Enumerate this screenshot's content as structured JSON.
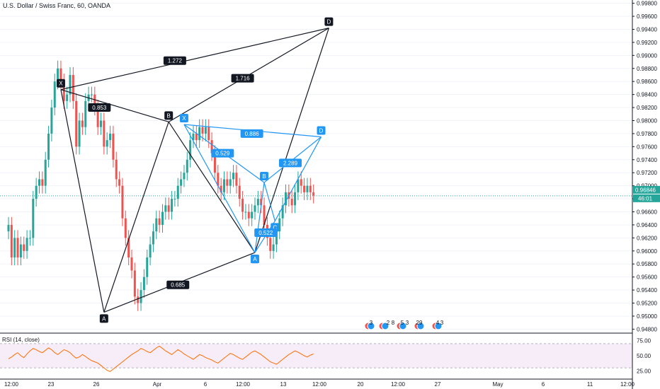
{
  "chart_data": {
    "type": "line",
    "title": "U.S. Dollar / Swiss Franc, 60, OANDA",
    "price": {
      "ylim": [
        0.9475,
        0.9985
      ],
      "yticks": [
        0.998,
        0.996,
        0.994,
        0.992,
        0.99,
        0.988,
        0.986,
        0.984,
        0.982,
        0.98,
        0.978,
        0.976,
        0.974,
        0.972,
        0.97,
        0.968,
        0.966,
        0.964,
        0.962,
        0.96,
        0.958,
        0.956,
        0.954,
        0.952,
        0.95,
        0.948
      ],
      "current_price": "0.96846",
      "countdown": "46:01",
      "series": [
        {
          "x": 0,
          "close": 0.964
        },
        {
          "x": 1,
          "close": 0.959
        },
        {
          "x": 2,
          "close": 0.962
        },
        {
          "x": 3,
          "close": 0.959
        },
        {
          "x": 4,
          "close": 0.961
        },
        {
          "x": 5,
          "close": 0.96
        },
        {
          "x": 6,
          "close": 0.962
        },
        {
          "x": 7,
          "close": 0.962
        },
        {
          "x": 8,
          "close": 0.968
        },
        {
          "x": 9,
          "close": 0.97
        },
        {
          "x": 10,
          "close": 0.971
        },
        {
          "x": 11,
          "close": 0.97
        },
        {
          "x": 12,
          "close": 0.974
        },
        {
          "x": 13,
          "close": 0.978
        },
        {
          "x": 14,
          "close": 0.982
        },
        {
          "x": 15,
          "close": 0.986
        },
        {
          "x": 16,
          "close": 0.988
        },
        {
          "x": 17,
          "close": 0.986
        },
        {
          "x": 18,
          "close": 0.983
        },
        {
          "x": 19,
          "close": 0.984
        },
        {
          "x": 20,
          "close": 0.987
        },
        {
          "x": 21,
          "close": 0.983
        },
        {
          "x": 22,
          "close": 0.976
        },
        {
          "x": 23,
          "close": 0.98
        },
        {
          "x": 24,
          "close": 0.979
        },
        {
          "x": 25,
          "close": 0.983
        },
        {
          "x": 26,
          "close": 0.984
        },
        {
          "x": 27,
          "close": 0.984
        },
        {
          "x": 28,
          "close": 0.982
        },
        {
          "x": 29,
          "close": 0.979
        },
        {
          "x": 30,
          "close": 0.98
        },
        {
          "x": 31,
          "close": 0.976
        },
        {
          "x": 32,
          "close": 0.977
        },
        {
          "x": 33,
          "close": 0.978
        },
        {
          "x": 34,
          "close": 0.974
        },
        {
          "x": 35,
          "close": 0.971
        },
        {
          "x": 36,
          "close": 0.97
        },
        {
          "x": 37,
          "close": 0.965
        },
        {
          "x": 38,
          "close": 0.962
        },
        {
          "x": 39,
          "close": 0.959
        },
        {
          "x": 40,
          "close": 0.957
        },
        {
          "x": 41,
          "close": 0.953
        },
        {
          "x": 42,
          "close": 0.952
        },
        {
          "x": 43,
          "close": 0.954
        },
        {
          "x": 44,
          "close": 0.956
        },
        {
          "x": 45,
          "close": 0.959
        },
        {
          "x": 46,
          "close": 0.961
        },
        {
          "x": 47,
          "close": 0.963
        },
        {
          "x": 48,
          "close": 0.965
        },
        {
          "x": 49,
          "close": 0.964
        },
        {
          "x": 50,
          "close": 0.966
        },
        {
          "x": 51,
          "close": 0.967
        },
        {
          "x": 52,
          "close": 0.966
        },
        {
          "x": 53,
          "close": 0.968
        },
        {
          "x": 54,
          "close": 0.968
        },
        {
          "x": 55,
          "close": 0.97
        },
        {
          "x": 56,
          "close": 0.971
        },
        {
          "x": 57,
          "close": 0.972
        },
        {
          "x": 58,
          "close": 0.974
        },
        {
          "x": 59,
          "close": 0.977
        },
        {
          "x": 60,
          "close": 0.978
        },
        {
          "x": 61,
          "close": 0.977
        },
        {
          "x": 62,
          "close": 0.979
        },
        {
          "x": 63,
          "close": 0.978
        },
        {
          "x": 64,
          "close": 0.979
        },
        {
          "x": 65,
          "close": 0.977
        },
        {
          "x": 66,
          "close": 0.975
        },
        {
          "x": 67,
          "close": 0.972
        },
        {
          "x": 68,
          "close": 0.97
        },
        {
          "x": 69,
          "close": 0.969
        },
        {
          "x": 70,
          "close": 0.971
        },
        {
          "x": 71,
          "close": 0.97
        },
        {
          "x": 72,
          "close": 0.971
        },
        {
          "x": 73,
          "close": 0.972
        },
        {
          "x": 74,
          "close": 0.97
        },
        {
          "x": 75,
          "close": 0.968
        },
        {
          "x": 76,
          "close": 0.966
        },
        {
          "x": 77,
          "close": 0.966
        },
        {
          "x": 78,
          "close": 0.965
        },
        {
          "x": 79,
          "close": 0.966
        },
        {
          "x": 80,
          "close": 0.967
        },
        {
          "x": 81,
          "close": 0.968
        },
        {
          "x": 82,
          "close": 0.967
        },
        {
          "x": 83,
          "close": 0.964
        },
        {
          "x": 84,
          "close": 0.962
        },
        {
          "x": 85,
          "close": 0.96
        },
        {
          "x": 86,
          "close": 0.961
        },
        {
          "x": 87,
          "close": 0.963
        },
        {
          "x": 88,
          "close": 0.965
        },
        {
          "x": 89,
          "close": 0.967
        },
        {
          "x": 90,
          "close": 0.969
        },
        {
          "x": 91,
          "close": 0.968
        },
        {
          "x": 92,
          "close": 0.967
        },
        {
          "x": 93,
          "close": 0.969
        },
        {
          "x": 94,
          "close": 0.971
        },
        {
          "x": 95,
          "close": 0.97
        },
        {
          "x": 96,
          "close": 0.969
        },
        {
          "x": 97,
          "close": 0.97
        },
        {
          "x": 98,
          "close": 0.969
        },
        {
          "x": 99,
          "close": 0.9685
        }
      ]
    },
    "x_ticks": [
      "12:00",
      "23",
      "26",
      "Apr",
      "6",
      "12:00",
      "13",
      "12:00",
      "20",
      "12:00",
      "27",
      "May",
      "6",
      "11",
      "12:00"
    ],
    "rsi": {
      "label": "RSI (14, close)",
      "ylim": [
        15,
        85
      ],
      "yticks": [
        75,
        50,
        25
      ],
      "band": [
        30,
        70
      ],
      "values": [
        45,
        48,
        52,
        55,
        50,
        47,
        53,
        58,
        62,
        60,
        57,
        55,
        59,
        63,
        60,
        55,
        52,
        56,
        60,
        58,
        55,
        50,
        46,
        48,
        52,
        49,
        45,
        42,
        40,
        38,
        34,
        30,
        26,
        24,
        28,
        32,
        36,
        40,
        44,
        48,
        52,
        55,
        58,
        62,
        60,
        57,
        55,
        59,
        63,
        66,
        62,
        58,
        55,
        52,
        56,
        60,
        57,
        53,
        50,
        47,
        44,
        48,
        52,
        50,
        47,
        45,
        43,
        40,
        38,
        42,
        46,
        50,
        54,
        52,
        49,
        46,
        44,
        48,
        52,
        56,
        58,
        55,
        52,
        48,
        44,
        40,
        38,
        36,
        40,
        44,
        48,
        52,
        55,
        58,
        56,
        53,
        50,
        48,
        51,
        53
      ]
    },
    "patterns": [
      {
        "name": "harmonic-black",
        "color": "#131722",
        "points": [
          {
            "label": "X",
            "x": 17,
            "y": 0.98475
          },
          {
            "label": "A",
            "x": 31,
            "y": 0.9506
          },
          {
            "label": "B",
            "x": 52,
            "y": 0.9798
          },
          {
            "label": "C",
            "x": 80,
            "y": 0.95975
          },
          {
            "label": "D",
            "x": 104,
            "y": 0.9942
          }
        ],
        "ratios": [
          {
            "label": "0.853",
            "x": 29.5,
            "y": 0.982
          },
          {
            "label": "1.272",
            "x": 54,
            "y": 0.9892
          },
          {
            "label": "1.716",
            "x": 76,
            "y": 0.9865
          },
          {
            "label": "0.685",
            "x": 55,
            "y": 0.9548
          }
        ]
      },
      {
        "name": "harmonic-blue",
        "color": "#2196f3",
        "points": [
          {
            "label": "X",
            "x": 57,
            "y": 0.9794
          },
          {
            "label": "A",
            "x": 80,
            "y": 0.95975
          },
          {
            "label": "B",
            "x": 83,
            "y": 0.9705
          },
          {
            "label": "C",
            "x": 86.5,
            "y": 0.9646
          },
          {
            "label": "D",
            "x": 101.5,
            "y": 0.9775
          }
        ],
        "ratios": [
          {
            "label": "0.886",
            "x": 79,
            "y": 0.978
          },
          {
            "label": "0.529",
            "x": 69.5,
            "y": 0.975
          },
          {
            "label": "2.289",
            "x": 91.5,
            "y": 0.9735
          },
          {
            "label": "0.522",
            "x": 83.5,
            "y": 0.9628
          }
        ]
      }
    ],
    "events": [
      "3",
      "2",
      "8",
      "5",
      "3",
      "29",
      "4",
      "3"
    ]
  }
}
